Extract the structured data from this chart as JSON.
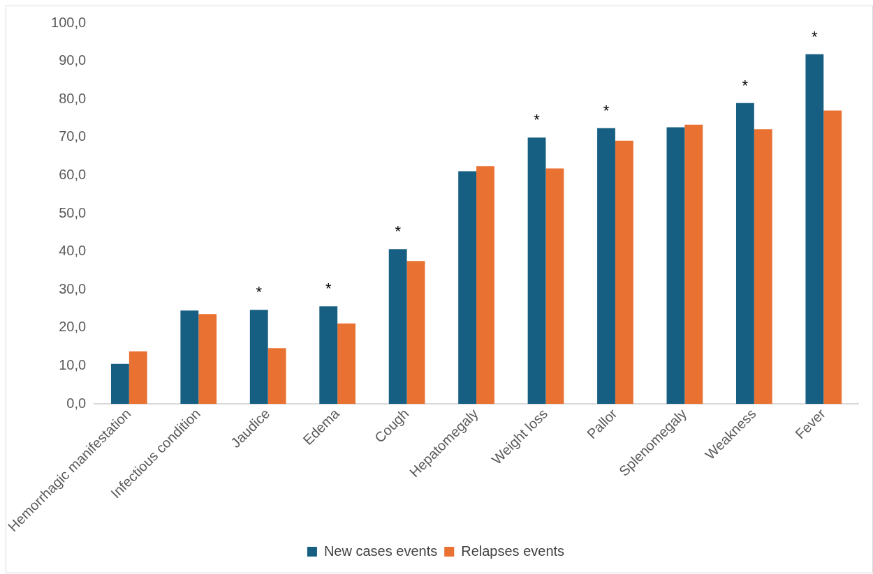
{
  "chart_data": {
    "type": "bar",
    "categories": [
      "Hemorrhagic manifestation",
      "Infectious condition",
      "Jaudice",
      "Edema",
      "Cough",
      "Hepatomegaly",
      "Weight loss",
      "Pallor",
      "Splenomegaly",
      "Weakness",
      "Fever"
    ],
    "series": [
      {
        "name": "New cases events",
        "color": "#175f82",
        "values": [
          10.5,
          24.5,
          24.7,
          25.6,
          40.6,
          61.1,
          69.9,
          72.4,
          72.6,
          79.0,
          91.8
        ]
      },
      {
        "name": "Relapses events",
        "color": "#e97132",
        "values": [
          13.8,
          23.6,
          14.6,
          21.1,
          37.5,
          62.4,
          61.8,
          69.1,
          73.3,
          72.1,
          77.0
        ]
      }
    ],
    "ylim": [
      0,
      100
    ],
    "yticks": [
      {
        "value": 0,
        "label": "0,0"
      },
      {
        "value": 10,
        "label": "10,0"
      },
      {
        "value": 20,
        "label": "20,0"
      },
      {
        "value": 30,
        "label": "30,0"
      },
      {
        "value": 40,
        "label": "40,0"
      },
      {
        "value": 50,
        "label": "50,0"
      },
      {
        "value": 60,
        "label": "60,0"
      },
      {
        "value": 70,
        "label": "70,0"
      },
      {
        "value": 80,
        "label": "80,0"
      },
      {
        "value": 90,
        "label": "90,0"
      },
      {
        "value": 100,
        "label": "100,0"
      }
    ],
    "annotations": [
      {
        "text": "*",
        "x": "Jaudice",
        "y": 24.7
      },
      {
        "text": "*",
        "x": "Edema",
        "y": 25.6
      },
      {
        "text": "*",
        "x": "Cough",
        "y": 40.6
      },
      {
        "text": "*",
        "x": "Weight loss",
        "y": 69.9
      },
      {
        "text": "*",
        "x": "Pallor",
        "y": 72.4
      },
      {
        "text": "*",
        "x": "Weakness",
        "y": 79.0
      },
      {
        "text": "*",
        "x": "Fever",
        "y": 91.8
      }
    ],
    "grid": false,
    "legend": "bottom"
  }
}
